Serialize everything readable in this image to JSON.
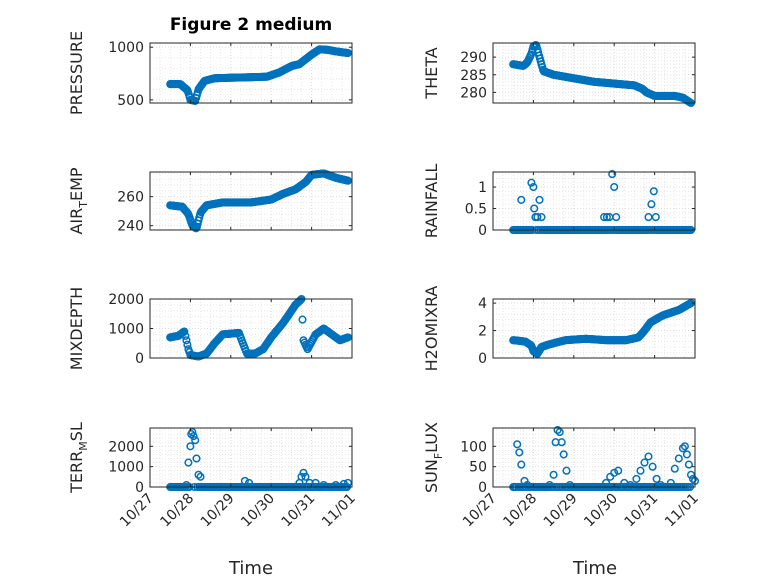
{
  "figure": {
    "title": "Figure 2 medium",
    "marker_color": "#0072BD",
    "x_axis": {
      "label": "Time",
      "ticks": [
        "10/27",
        "10/28",
        "10/29",
        "10/30",
        "10/31",
        "11/01"
      ]
    }
  },
  "chart_data": [
    {
      "type": "scatter",
      "name": "PRESSURE",
      "ylabel": "PRESSURE",
      "ylim": [
        470,
        1040
      ],
      "yticks": [
        500,
        1000
      ],
      "grid": true,
      "legend": "none",
      "x_days": [
        0.5,
        4.9
      ],
      "keyframes": [
        [
          0.5,
          650
        ],
        [
          0.75,
          650
        ],
        [
          0.93,
          590
        ],
        [
          1.0,
          500
        ],
        [
          1.12,
          490
        ],
        [
          1.2,
          600
        ],
        [
          1.35,
          680
        ],
        [
          1.6,
          705
        ],
        [
          2.0,
          710
        ],
        [
          2.5,
          715
        ],
        [
          2.9,
          720
        ],
        [
          3.2,
          760
        ],
        [
          3.5,
          820
        ],
        [
          3.7,
          840
        ],
        [
          3.8,
          870
        ],
        [
          4.0,
          930
        ],
        [
          4.2,
          980
        ],
        [
          4.4,
          975
        ],
        [
          4.6,
          960
        ],
        [
          4.9,
          945
        ]
      ],
      "step": 0.02
    },
    {
      "type": "scatter",
      "name": "THETA",
      "ylabel": "THETA",
      "ylim": [
        277,
        294
      ],
      "yticks": [
        280,
        285,
        290
      ],
      "grid": true,
      "legend": "none",
      "x_days": [
        0.5,
        4.9
      ],
      "keyframes": [
        [
          0.5,
          288
        ],
        [
          0.75,
          287.5
        ],
        [
          0.85,
          288.5
        ],
        [
          0.95,
          291
        ],
        [
          1.0,
          293
        ],
        [
          1.07,
          293.5
        ],
        [
          1.15,
          290
        ],
        [
          1.25,
          286
        ],
        [
          1.5,
          285
        ],
        [
          2.0,
          284
        ],
        [
          2.5,
          283
        ],
        [
          3.0,
          282.5
        ],
        [
          3.5,
          282
        ],
        [
          3.7,
          281
        ],
        [
          3.8,
          280
        ],
        [
          4.0,
          279
        ],
        [
          4.5,
          279
        ],
        [
          4.7,
          278.5
        ],
        [
          4.9,
          277
        ]
      ],
      "step": 0.02
    },
    {
      "type": "scatter",
      "name": "AIR_TEMP",
      "ylabel_main": "AIR",
      "ylabel_sub": "T",
      "ylabel_tail": "EMP",
      "ylim": [
        237,
        277
      ],
      "yticks": [
        240,
        260
      ],
      "grid": true,
      "legend": "none",
      "x_days": [
        0.5,
        4.9
      ],
      "keyframes": [
        [
          0.5,
          254
        ],
        [
          0.8,
          253
        ],
        [
          0.95,
          248
        ],
        [
          1.05,
          240
        ],
        [
          1.15,
          238
        ],
        [
          1.25,
          249
        ],
        [
          1.4,
          254
        ],
        [
          1.8,
          256
        ],
        [
          2.5,
          256
        ],
        [
          3.0,
          258
        ],
        [
          3.3,
          262
        ],
        [
          3.6,
          265
        ],
        [
          3.85,
          270
        ],
        [
          4.0,
          275
        ],
        [
          4.3,
          276
        ],
        [
          4.6,
          273
        ],
        [
          4.9,
          271
        ]
      ],
      "step": 0.02
    },
    {
      "type": "scatter",
      "name": "RAINFALL",
      "ylabel": "RAINFALL",
      "ylim": [
        0,
        1.35
      ],
      "yticks": [
        0,
        0.5,
        1
      ],
      "grid": true,
      "legend": "none",
      "x_days": [
        0.5,
        4.9
      ],
      "baseline": 0,
      "step": 0.025,
      "spikes": [
        [
          0.7,
          0.7
        ],
        [
          0.95,
          1.1
        ],
        [
          1.0,
          1.0
        ],
        [
          1.02,
          0.5
        ],
        [
          1.05,
          0.3
        ],
        [
          1.1,
          0.3
        ],
        [
          1.15,
          0.7
        ],
        [
          1.2,
          0.3
        ],
        [
          2.75,
          0.3
        ],
        [
          2.82,
          0.3
        ],
        [
          2.88,
          0.3
        ],
        [
          2.95,
          1.3
        ],
        [
          3.0,
          1.0
        ],
        [
          3.05,
          0.3
        ],
        [
          3.85,
          0.3
        ],
        [
          3.92,
          0.6
        ],
        [
          3.98,
          0.9
        ],
        [
          4.03,
          0.3
        ]
      ]
    },
    {
      "type": "scatter",
      "name": "MIXDEPTH",
      "ylabel": "MIXDEPTH",
      "ylim": [
        0,
        2000
      ],
      "yticks": [
        0,
        1000,
        2000
      ],
      "grid": true,
      "legend": "none",
      "x_days": [
        0.5,
        4.9
      ],
      "keyframes": [
        [
          0.5,
          700
        ],
        [
          0.7,
          750
        ],
        [
          0.85,
          900
        ],
        [
          0.95,
          300
        ],
        [
          1.0,
          100
        ],
        [
          1.2,
          50
        ],
        [
          1.3,
          100
        ],
        [
          1.4,
          150
        ],
        [
          1.6,
          500
        ],
        [
          1.8,
          800
        ],
        [
          2.2,
          850
        ],
        [
          2.4,
          150
        ],
        [
          2.6,
          150
        ],
        [
          2.8,
          300
        ],
        [
          3.0,
          700
        ],
        [
          3.3,
          1200
        ],
        [
          3.6,
          1800
        ],
        [
          3.75,
          2000
        ],
        [
          3.8,
          600
        ],
        [
          3.9,
          300
        ],
        [
          4.1,
          800
        ],
        [
          4.3,
          1000
        ],
        [
          4.5,
          800
        ],
        [
          4.7,
          600
        ],
        [
          4.9,
          700
        ]
      ],
      "step": 0.025
    },
    {
      "type": "scatter",
      "name": "H2OMIXRA",
      "ylabel": "H2OMIXRA",
      "ylim": [
        0,
        4.3
      ],
      "yticks": [
        0,
        2,
        4
      ],
      "grid": true,
      "legend": "none",
      "x_days": [
        0.5,
        4.9
      ],
      "keyframes": [
        [
          0.5,
          1.3
        ],
        [
          0.8,
          1.2
        ],
        [
          0.95,
          0.9
        ],
        [
          1.0,
          0.5
        ],
        [
          1.1,
          0.3
        ],
        [
          1.2,
          0.8
        ],
        [
          1.4,
          1.0
        ],
        [
          1.8,
          1.3
        ],
        [
          2.3,
          1.4
        ],
        [
          2.8,
          1.3
        ],
        [
          3.3,
          1.3
        ],
        [
          3.6,
          1.5
        ],
        [
          3.75,
          2.0
        ],
        [
          3.9,
          2.6
        ],
        [
          4.2,
          3.1
        ],
        [
          4.6,
          3.5
        ],
        [
          4.9,
          4.0
        ]
      ],
      "step": 0.02
    },
    {
      "type": "scatter",
      "name": "TERR_MSL",
      "ylabel_main": "TERR",
      "ylabel_sub": "M",
      "ylabel_tail": "SL",
      "ylim": [
        0,
        2900
      ],
      "yticks": [
        0,
        1000,
        2000
      ],
      "grid": true,
      "legend": "none",
      "x_days": [
        0.5,
        4.9
      ],
      "baseline": 0,
      "step": 0.025,
      "spikes": [
        [
          0.9,
          100
        ],
        [
          0.95,
          1200
        ],
        [
          1.0,
          2000
        ],
        [
          1.02,
          2600
        ],
        [
          1.05,
          2700
        ],
        [
          1.08,
          2500
        ],
        [
          1.12,
          2300
        ],
        [
          1.15,
          1400
        ],
        [
          1.2,
          600
        ],
        [
          1.25,
          500
        ],
        [
          2.35,
          300
        ],
        [
          2.45,
          200
        ],
        [
          3.7,
          200
        ],
        [
          3.75,
          500
        ],
        [
          3.8,
          700
        ],
        [
          3.85,
          500
        ],
        [
          3.95,
          200
        ],
        [
          4.1,
          200
        ],
        [
          4.3,
          100
        ],
        [
          4.6,
          100
        ],
        [
          4.8,
          150
        ],
        [
          4.9,
          200
        ]
      ]
    },
    {
      "type": "scatter",
      "name": "SUN_FLUX",
      "ylabel_main": "SUN",
      "ylabel_sub": "F",
      "ylabel_tail": "LUX",
      "ylim": [
        0,
        145
      ],
      "yticks": [
        0,
        50,
        100
      ],
      "grid": true,
      "legend": "none",
      "x_days": [
        0.5,
        4.9
      ],
      "baseline": 0,
      "step": 0.025,
      "spikes": [
        [
          0.6,
          105
        ],
        [
          0.65,
          85
        ],
        [
          0.7,
          55
        ],
        [
          0.78,
          15
        ],
        [
          0.85,
          5
        ],
        [
          1.4,
          5
        ],
        [
          1.5,
          30
        ],
        [
          1.55,
          110
        ],
        [
          1.6,
          140
        ],
        [
          1.65,
          135
        ],
        [
          1.7,
          110
        ],
        [
          1.75,
          80
        ],
        [
          1.82,
          40
        ],
        [
          1.9,
          5
        ],
        [
          2.8,
          10
        ],
        [
          2.9,
          25
        ],
        [
          3.0,
          35
        ],
        [
          3.1,
          40
        ],
        [
          3.25,
          10
        ],
        [
          3.4,
          5
        ],
        [
          3.55,
          20
        ],
        [
          3.65,
          40
        ],
        [
          3.75,
          60
        ],
        [
          3.85,
          75
        ],
        [
          3.95,
          50
        ],
        [
          4.05,
          20
        ],
        [
          4.15,
          5
        ],
        [
          4.4,
          10
        ],
        [
          4.5,
          45
        ],
        [
          4.6,
          70
        ],
        [
          4.7,
          95
        ],
        [
          4.75,
          100
        ],
        [
          4.8,
          80
        ],
        [
          4.85,
          55
        ],
        [
          4.9,
          30
        ],
        [
          4.95,
          20
        ],
        [
          5.0,
          15
        ]
      ]
    }
  ]
}
